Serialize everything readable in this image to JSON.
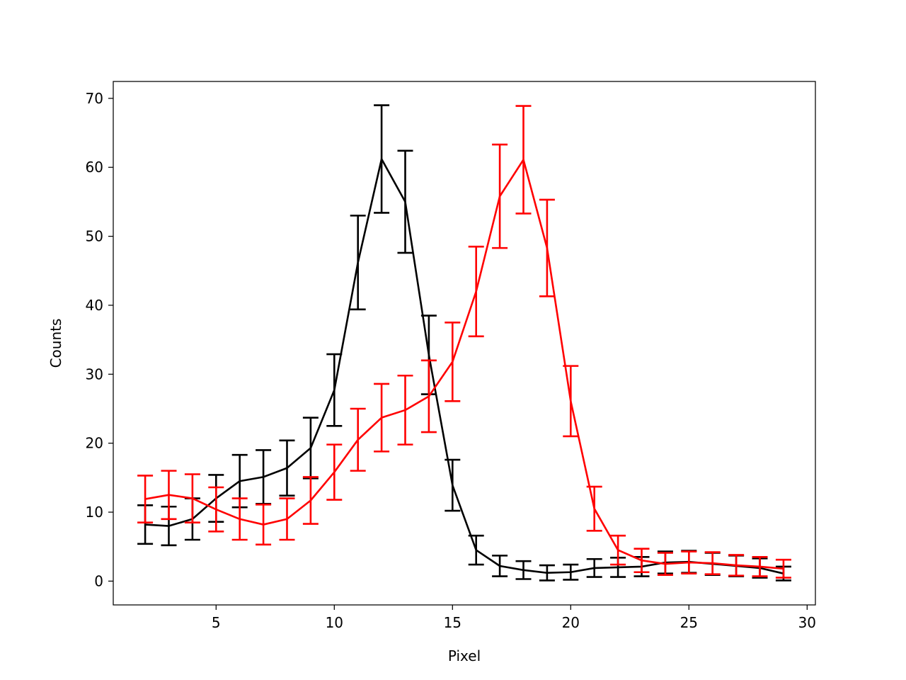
{
  "chart_data": {
    "type": "line",
    "title": "",
    "xlabel": "Pixel",
    "ylabel": "Counts",
    "xlim": [
      0.65,
      30.35
    ],
    "ylim": [
      -3.45,
      72.45
    ],
    "xticks": [
      5,
      10,
      15,
      20,
      25,
      30
    ],
    "yticks": [
      0,
      10,
      20,
      30,
      40,
      50,
      60,
      70
    ],
    "grid": false,
    "legend": "none",
    "x": [
      2,
      3,
      4,
      5,
      6,
      7,
      8,
      9,
      10,
      11,
      12,
      13,
      14,
      15,
      16,
      17,
      18,
      19,
      20,
      21,
      22,
      23,
      24,
      25,
      26,
      27,
      28,
      29
    ],
    "series": [
      {
        "color": "#000000",
        "values": [
          8.2,
          8.0,
          9.0,
          12.0,
          14.5,
          15.1,
          16.4,
          19.3,
          27.7,
          46.2,
          61.2,
          55.0,
          32.8,
          13.9,
          4.5,
          2.2,
          1.6,
          1.2,
          1.3,
          1.9,
          2.0,
          2.1,
          2.7,
          2.8,
          2.5,
          2.2,
          1.9,
          1.1
        ],
        "errors": [
          2.8,
          2.8,
          3.0,
          3.4,
          3.8,
          3.9,
          4.0,
          4.4,
          5.2,
          6.8,
          7.8,
          7.4,
          5.7,
          3.7,
          2.1,
          1.5,
          1.3,
          1.1,
          1.1,
          1.3,
          1.4,
          1.4,
          1.6,
          1.6,
          1.6,
          1.5,
          1.4,
          1.0
        ]
      },
      {
        "color": "#ff0000",
        "values": [
          11.9,
          12.5,
          12.0,
          10.4,
          9.0,
          8.2,
          9.0,
          11.7,
          15.8,
          20.5,
          23.7,
          24.8,
          26.8,
          31.8,
          42.0,
          55.8,
          61.1,
          48.3,
          26.1,
          10.5,
          4.5,
          3.0,
          2.5,
          2.7,
          2.6,
          2.3,
          2.1,
          1.8
        ],
        "errors": [
          3.4,
          3.5,
          3.5,
          3.2,
          3.0,
          2.9,
          3.0,
          3.4,
          4.0,
          4.5,
          4.9,
          5.0,
          5.2,
          5.7,
          6.5,
          7.5,
          7.8,
          7.0,
          5.1,
          3.2,
          2.1,
          1.7,
          1.6,
          1.6,
          1.6,
          1.5,
          1.4,
          1.3
        ]
      }
    ]
  }
}
